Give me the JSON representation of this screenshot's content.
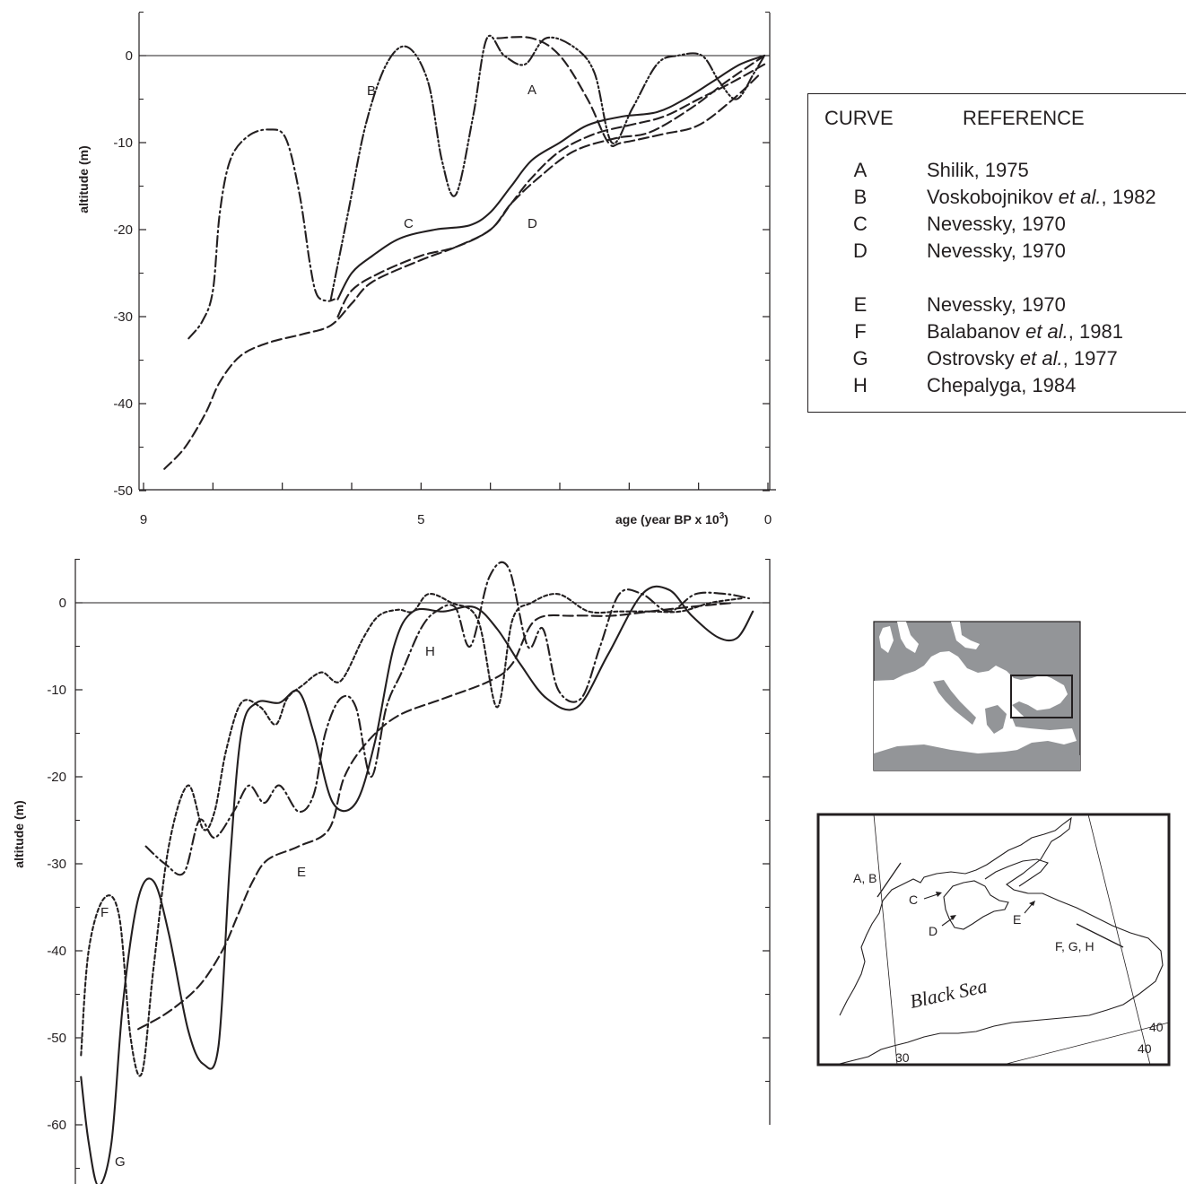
{
  "chart_data": [
    {
      "type": "line",
      "xlabel": "age (year BP x 10",
      "xlabel_sup": "3",
      "xlabel_close": ")",
      "ylabel": "altitude (m)",
      "xlim": [
        9,
        0
      ],
      "ylim": [
        -50,
        5
      ],
      "x_ticks": [
        9,
        5,
        0
      ],
      "y_ticks": [
        0,
        -10,
        -20,
        -30,
        -40,
        -50
      ],
      "y_tick_labels": [
        "0",
        "-10",
        "-20",
        "-30",
        "-40",
        "-50"
      ],
      "series": [
        {
          "name": "A",
          "style": "dash",
          "points": [
            [
              3.9,
              2
            ],
            [
              3.4,
              2
            ],
            [
              3.0,
              0
            ],
            [
              2.6,
              -5
            ],
            [
              2.3,
              -10
            ],
            [
              2.1,
              -10
            ],
            [
              1.5,
              -9
            ],
            [
              1.0,
              -8
            ],
            [
              0.5,
              -5
            ],
            [
              0.1,
              -2
            ]
          ]
        },
        {
          "name": "B",
          "style": "dashdotdot",
          "points": [
            [
              6.3,
              -28
            ],
            [
              6.05,
              -18
            ],
            [
              5.8,
              -8
            ],
            [
              5.5,
              -1
            ],
            [
              5.2,
              1
            ],
            [
              4.9,
              -3
            ],
            [
              4.7,
              -12
            ],
            [
              4.5,
              -16
            ],
            [
              4.25,
              -7
            ],
            [
              4.05,
              2
            ],
            [
              3.8,
              0
            ],
            [
              3.5,
              -1
            ],
            [
              3.2,
              2
            ],
            [
              2.8,
              1
            ],
            [
              2.5,
              -2
            ],
            [
              2.25,
              -10
            ],
            [
              1.95,
              -6
            ],
            [
              1.6,
              -1
            ],
            [
              1.3,
              0
            ],
            [
              0.95,
              0
            ],
            [
              0.7,
              -3
            ],
            [
              0.45,
              -5
            ],
            [
              0.2,
              -2
            ],
            [
              0.05,
              0
            ]
          ]
        },
        {
          "name": "C",
          "style": "solid",
          "points": [
            [
              6.2,
              -28
            ],
            [
              6.0,
              -25
            ],
            [
              5.7,
              -23
            ],
            [
              5.3,
              -21
            ],
            [
              4.8,
              -20
            ],
            [
              4.3,
              -19.5
            ],
            [
              4.0,
              -18
            ],
            [
              3.7,
              -15
            ],
            [
              3.4,
              -12
            ],
            [
              3.0,
              -10
            ],
            [
              2.6,
              -8
            ],
            [
              2.1,
              -7
            ],
            [
              1.6,
              -6.5
            ],
            [
              1.2,
              -5
            ],
            [
              0.8,
              -3
            ],
            [
              0.4,
              -1
            ],
            [
              0.05,
              0
            ]
          ]
        },
        {
          "name": "D",
          "style": "dash",
          "points": [
            [
              6.2,
              -30
            ],
            [
              6.0,
              -27
            ],
            [
              5.6,
              -25
            ],
            [
              5.0,
              -23
            ],
            [
              4.5,
              -22
            ],
            [
              4.0,
              -20
            ],
            [
              3.7,
              -17
            ],
            [
              3.4,
              -14
            ],
            [
              3.0,
              -11
            ],
            [
              2.5,
              -9
            ],
            [
              2.0,
              -8
            ],
            [
              1.5,
              -7
            ],
            [
              1.0,
              -5
            ],
            [
              0.5,
              -3
            ],
            [
              0.05,
              -1
            ]
          ]
        },
        {
          "name": "H",
          "style": "dashdot",
          "points": [
            [
              8.35,
              -32.5
            ],
            [
              8.15,
              -30.5
            ],
            [
              8.0,
              -27
            ],
            [
              7.9,
              -18
            ],
            [
              7.75,
              -12
            ],
            [
              7.5,
              -9.3
            ],
            [
              7.2,
              -8.5
            ],
            [
              6.95,
              -9.5
            ],
            [
              6.75,
              -16
            ],
            [
              6.6,
              -24
            ],
            [
              6.5,
              -27.5
            ],
            [
              6.35,
              -28.2
            ],
            [
              6.25,
              -28
            ]
          ]
        },
        {
          "name": "E",
          "style": "dash",
          "points": [
            [
              8.7,
              -47.5
            ],
            [
              8.4,
              -45
            ],
            [
              8.1,
              -41
            ],
            [
              7.9,
              -37.5
            ],
            [
              7.6,
              -34.5
            ],
            [
              7.2,
              -33
            ],
            [
              6.7,
              -32
            ],
            [
              6.3,
              -31
            ],
            [
              6.0,
              -28.5
            ],
            [
              5.7,
              -26
            ],
            [
              5.0,
              -23.5
            ],
            [
              4.5,
              -22
            ],
            [
              4.0,
              -20
            ],
            [
              3.7,
              -17
            ],
            [
              3.3,
              -14
            ],
            [
              2.8,
              -11
            ],
            [
              2.2,
              -9.5
            ],
            [
              1.7,
              -8.8
            ],
            [
              1.1,
              -6
            ],
            [
              0.6,
              -3
            ],
            [
              0.05,
              0
            ]
          ]
        }
      ]
    },
    {
      "type": "line",
      "ylabel": "altitude (m)",
      "ylim": [
        -67,
        5
      ],
      "y_ticks": [
        0,
        -10,
        -20,
        -30,
        -40,
        -50,
        -60
      ],
      "y_tick_labels": [
        "0",
        "-10",
        "-20",
        "-30",
        "-40",
        "-50",
        "-60"
      ],
      "x_range": [
        9,
        0
      ],
      "series": [
        {
          "name": "E",
          "style": "dash",
          "points": [
            [
              8.2,
              -49
            ],
            [
              7.8,
              -47
            ],
            [
              7.4,
              -44
            ],
            [
              7.1,
              -40
            ],
            [
              6.9,
              -36
            ],
            [
              6.7,
              -32
            ],
            [
              6.5,
              -29.5
            ],
            [
              6.1,
              -28
            ],
            [
              5.7,
              -26
            ],
            [
              5.5,
              -20
            ],
            [
              5.2,
              -16
            ],
            [
              4.8,
              -13
            ],
            [
              4.2,
              -11
            ],
            [
              3.6,
              -9
            ],
            [
              3.3,
              -7
            ],
            [
              3.0,
              -2
            ],
            [
              2.5,
              -1.5
            ],
            [
              2.0,
              -1.5
            ],
            [
              1.5,
              -1
            ],
            [
              1.0,
              -0.5
            ],
            [
              0.4,
              0
            ]
          ]
        },
        {
          "name": "F",
          "style": "dotted",
          "points": [
            [
              8.95,
              -52
            ],
            [
              8.85,
              -40
            ],
            [
              8.65,
              -34
            ],
            [
              8.45,
              -36
            ],
            [
              8.3,
              -50
            ],
            [
              8.15,
              -54
            ],
            [
              8.0,
              -42
            ],
            [
              7.8,
              -28
            ],
            [
              7.55,
              -21
            ],
            [
              7.35,
              -26
            ],
            [
              7.2,
              -24
            ],
            [
              7.05,
              -17
            ],
            [
              6.85,
              -11.5
            ],
            [
              6.6,
              -12
            ],
            [
              6.4,
              -14
            ],
            [
              6.25,
              -11
            ],
            [
              6.05,
              -9.5
            ],
            [
              5.8,
              -8
            ],
            [
              5.55,
              -9
            ],
            [
              5.25,
              -4
            ],
            [
              5.05,
              -1.5
            ],
            [
              4.8,
              -0.8
            ],
            [
              4.6,
              -1
            ],
            [
              4.4,
              1
            ],
            [
              4.1,
              0
            ],
            [
              3.75,
              -2
            ],
            [
              3.5,
              -12
            ],
            [
              3.3,
              -2
            ],
            [
              3.05,
              0
            ],
            [
              2.7,
              1
            ],
            [
              2.3,
              -1
            ],
            [
              1.9,
              -1
            ],
            [
              1.5,
              -1
            ],
            [
              1.1,
              -1
            ],
            [
              0.7,
              0
            ],
            [
              0.3,
              0.5
            ]
          ]
        },
        {
          "name": "G",
          "style": "solid",
          "points": [
            [
              8.95,
              -54.5
            ],
            [
              8.85,
              -62
            ],
            [
              8.72,
              -67
            ],
            [
              8.55,
              -62
            ],
            [
              8.4,
              -46
            ],
            [
              8.2,
              -34
            ],
            [
              8.0,
              -32
            ],
            [
              7.8,
              -38
            ],
            [
              7.55,
              -49
            ],
            [
              7.35,
              -53
            ],
            [
              7.15,
              -51
            ],
            [
              7.0,
              -30
            ],
            [
              6.85,
              -15
            ],
            [
              6.65,
              -11.5
            ],
            [
              6.35,
              -11.5
            ],
            [
              6.1,
              -10.2
            ],
            [
              5.9,
              -15
            ],
            [
              5.65,
              -23
            ],
            [
              5.35,
              -23
            ],
            [
              5.1,
              -16
            ],
            [
              4.85,
              -5
            ],
            [
              4.6,
              -1
            ],
            [
              4.2,
              -1
            ],
            [
              3.8,
              -0.5
            ],
            [
              3.5,
              -3
            ],
            [
              3.2,
              -7
            ],
            [
              2.85,
              -11
            ],
            [
              2.45,
              -12
            ],
            [
              2.05,
              -6
            ],
            [
              1.6,
              1
            ],
            [
              1.25,
              1.5
            ],
            [
              0.95,
              -1.5
            ],
            [
              0.6,
              -4
            ],
            [
              0.35,
              -4
            ],
            [
              0.15,
              -1
            ]
          ]
        },
        {
          "name": "H",
          "style": "dashdot",
          "points": [
            [
              8.1,
              -28
            ],
            [
              7.85,
              -30
            ],
            [
              7.6,
              -31
            ],
            [
              7.4,
              -25
            ],
            [
              7.2,
              -27
            ],
            [
              6.95,
              -24
            ],
            [
              6.75,
              -21
            ],
            [
              6.55,
              -23
            ],
            [
              6.35,
              -21
            ],
            [
              6.1,
              -24
            ],
            [
              5.9,
              -22
            ],
            [
              5.75,
              -15
            ],
            [
              5.55,
              -11
            ],
            [
              5.35,
              -12
            ],
            [
              5.15,
              -20
            ],
            [
              4.95,
              -12
            ],
            [
              4.75,
              -8
            ],
            [
              4.5,
              -3
            ],
            [
              4.3,
              -1
            ],
            [
              4.05,
              -0.5
            ],
            [
              3.85,
              -5
            ],
            [
              3.6,
              3
            ],
            [
              3.35,
              4
            ],
            [
              3.1,
              -5
            ],
            [
              2.9,
              -3
            ],
            [
              2.7,
              -10
            ],
            [
              2.4,
              -11
            ],
            [
              2.15,
              -5
            ],
            [
              1.9,
              1
            ],
            [
              1.6,
              1
            ],
            [
              1.25,
              -1
            ],
            [
              0.9,
              1
            ],
            [
              0.5,
              1
            ],
            [
              0.2,
              0.5
            ]
          ]
        }
      ],
      "curve_labels": [
        "E",
        "F",
        "G",
        "H"
      ]
    }
  ],
  "legend": {
    "col1": "CURVE",
    "col2": "REFERENCE",
    "rows": [
      {
        "key": "A",
        "ref": "Shilik, 1975",
        "italic": "",
        "tail": ""
      },
      {
        "key": "B",
        "ref": "Voskobojnikov ",
        "italic": "et al.",
        "tail": ", 1982"
      },
      {
        "key": "C",
        "ref": "Nevessky, 1970",
        "italic": "",
        "tail": ""
      },
      {
        "key": "D",
        "ref": "Nevessky, 1970",
        "italic": "",
        "tail": ""
      },
      {
        "key": "E",
        "ref": "Nevessky, 1970",
        "italic": "",
        "tail": ""
      },
      {
        "key": "F",
        "ref": "Balabanov ",
        "italic": "et al.",
        "tail": ", 1981"
      },
      {
        "key": "G",
        "ref": "Ostrovsky ",
        "italic": "et al.",
        "tail": ", 1977"
      },
      {
        "key": "H",
        "ref": "Chepalyga, 1984",
        "italic": "",
        "tail": ""
      }
    ]
  },
  "top_curve_labels": [
    "A",
    "B",
    "C",
    "D"
  ],
  "map": {
    "title": "Black Sea",
    "labels": [
      "A, B",
      "C",
      "D",
      "E",
      "F, G, H"
    ],
    "grid_labels": [
      "30",
      "40",
      "40"
    ]
  },
  "colors": {
    "ink": "#231f20",
    "land": "#939598",
    "sea": "#ffffff"
  }
}
